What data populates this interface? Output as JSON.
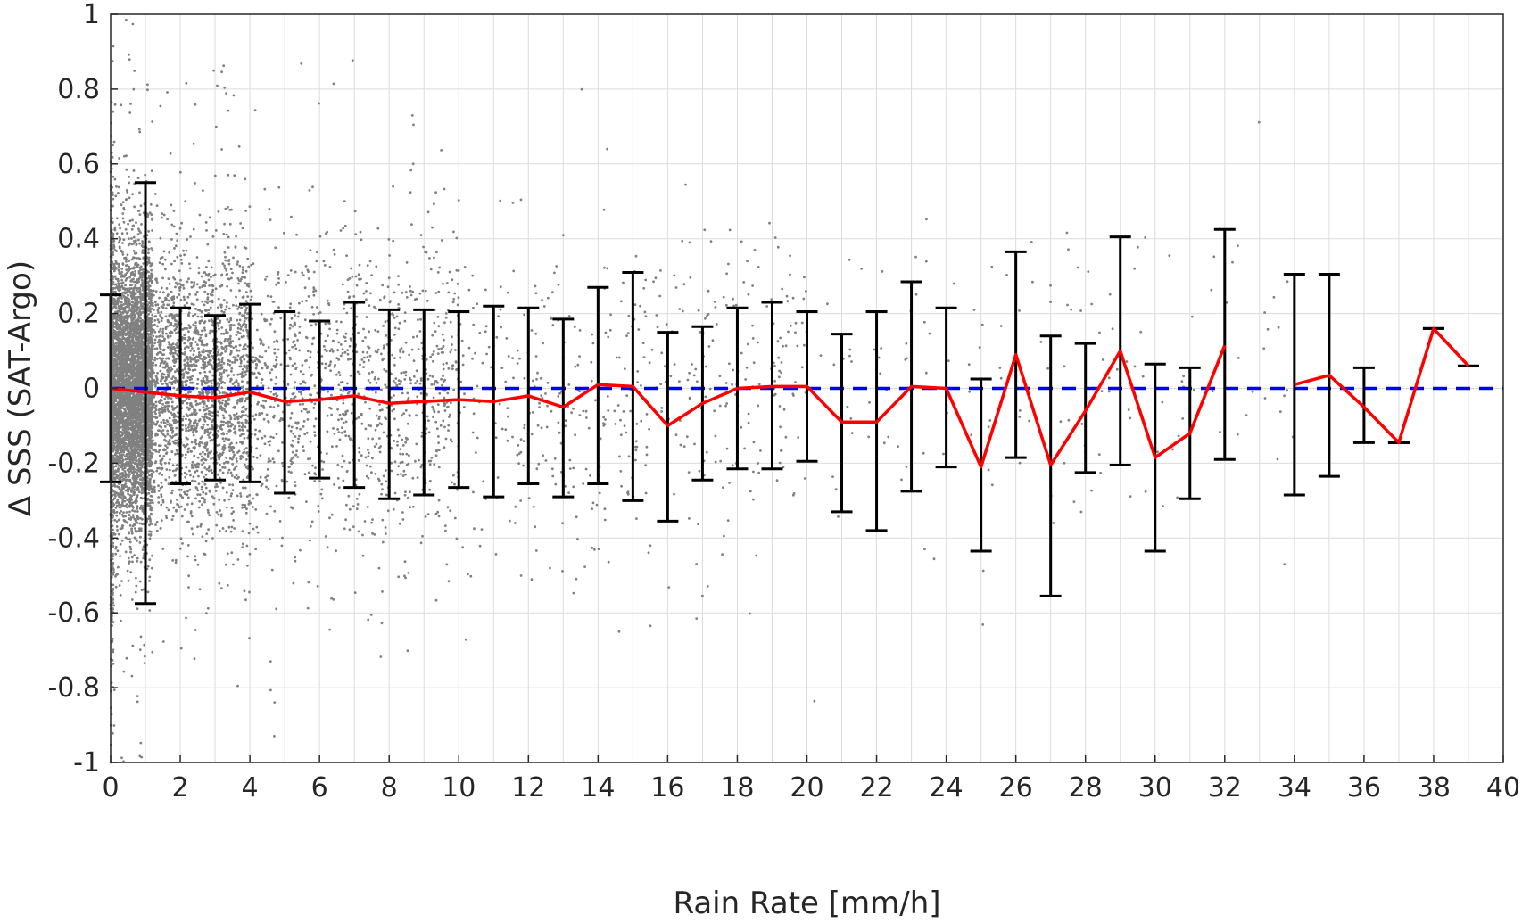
{
  "chart_data": {
    "type": "scatter",
    "xlabel": "Rain Rate [mm/h]",
    "ylabel": "Δ SSS (SAT-Argo)",
    "xlim": [
      0,
      40
    ],
    "ylim": [
      -1,
      1
    ],
    "xticks": [
      0,
      2,
      4,
      6,
      8,
      10,
      12,
      14,
      16,
      18,
      20,
      22,
      24,
      26,
      28,
      30,
      32,
      34,
      36,
      38,
      40
    ],
    "xtick_labels": [
      "0",
      "2",
      "4",
      "6",
      "8",
      "10",
      "12",
      "14",
      "16",
      "18",
      "20",
      "22",
      "24",
      "26",
      "28",
      "30",
      "32",
      "34",
      "36",
      "38",
      "40"
    ],
    "yticks": [
      -1,
      -0.8,
      -0.6,
      -0.4,
      -0.2,
      0,
      0.2,
      0.4,
      0.6,
      0.8,
      1
    ],
    "ytick_labels": [
      "-1",
      "-0.8",
      "-0.6",
      "-0.4",
      "-0.2",
      "0",
      "0.2",
      "0.4",
      "0.6",
      "0.8",
      "1"
    ],
    "grid": true,
    "colors": {
      "scatter": "#808080",
      "mean_line": "#ff0000",
      "error_bars": "#000000",
      "zero_line": "#0000ff"
    },
    "series": [
      {
        "kind": "line",
        "style": "dashed",
        "x": [
          0,
          40
        ],
        "y": [
          0,
          0
        ]
      },
      {
        "kind": "line_with_errorbars",
        "x": [
          0,
          1,
          2,
          3,
          4,
          5,
          6,
          7,
          8,
          9,
          10,
          11,
          12,
          13,
          14,
          15,
          16,
          17,
          18,
          19,
          20,
          21,
          22,
          23,
          24,
          25,
          26,
          27,
          28,
          29,
          30,
          31,
          32,
          34,
          35,
          36,
          37,
          38,
          39
        ],
        "y": [
          0.0,
          -0.01,
          -0.02,
          -0.025,
          -0.01,
          -0.035,
          -0.03,
          -0.02,
          -0.04,
          -0.035,
          -0.03,
          -0.035,
          -0.02,
          -0.05,
          0.01,
          0.005,
          -0.1,
          -0.04,
          0.0,
          0.005,
          0.005,
          -0.09,
          -0.09,
          0.005,
          0.0,
          -0.21,
          0.09,
          -0.205,
          -0.06,
          0.1,
          -0.185,
          -0.12,
          0.115,
          0.01,
          0.035,
          -0.05,
          -0.145,
          0.16,
          0.06
        ],
        "upper": [
          0.25,
          0.55,
          0.215,
          0.195,
          0.225,
          0.205,
          0.18,
          0.23,
          0.21,
          0.21,
          0.205,
          0.22,
          0.215,
          0.185,
          0.27,
          0.31,
          0.15,
          0.165,
          0.215,
          0.23,
          0.205,
          0.145,
          0.205,
          0.285,
          0.215,
          0.025,
          0.365,
          0.14,
          0.12,
          0.405,
          0.065,
          0.055,
          0.425,
          0.305,
          0.305,
          0.055,
          -0.145,
          0.16,
          0.06
        ],
        "lower": [
          -0.25,
          -0.575,
          -0.255,
          -0.245,
          -0.25,
          -0.28,
          -0.24,
          -0.265,
          -0.295,
          -0.285,
          -0.265,
          -0.29,
          -0.255,
          -0.29,
          -0.255,
          -0.3,
          -0.355,
          -0.245,
          -0.215,
          -0.215,
          -0.195,
          -0.33,
          -0.38,
          -0.275,
          -0.21,
          -0.435,
          -0.185,
          -0.555,
          -0.225,
          -0.205,
          -0.435,
          -0.295,
          -0.19,
          -0.285,
          -0.235,
          -0.145,
          -0.145,
          0.16,
          0.06
        ]
      },
      {
        "kind": "scatter",
        "description_points": "dense cloud of individual matchups; most points at 0–2 mm/h, spreading between -1 and 1"
      }
    ]
  }
}
